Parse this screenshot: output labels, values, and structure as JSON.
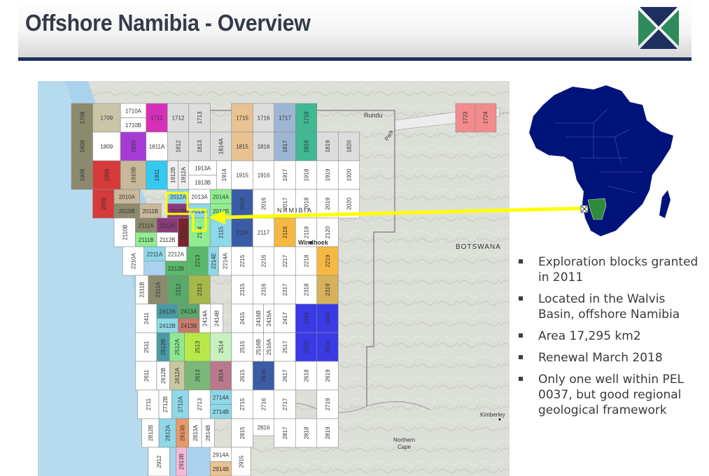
{
  "slide": {
    "title": "Offshore Namibia - Overview"
  },
  "map": {
    "places": {
      "rundu": "Rundu",
      "park": "Park",
      "namibia": "NAMIBIA",
      "windhoek": "Windhoek",
      "botswana": "BOTSWANA",
      "kimberley": "Kimberley",
      "northern": "Northern",
      "cape": "Cape"
    },
    "highlight_color": "#ffff00",
    "ocean_color": "#a9d3ec",
    "land_color": "#d9dcd6",
    "blocks": [
      {
        "id": "1708",
        "color": "#8c8a6c",
        "rot": true
      },
      {
        "id": "1709",
        "color": "#c9c6a8"
      },
      {
        "id": "1710A",
        "color": "#ffffff"
      },
      {
        "id": "1710B",
        "color": "#ffffff"
      },
      {
        "id": "1711",
        "color": "#d62fb8"
      },
      {
        "id": "1712",
        "color": "#dddddd"
      },
      {
        "id": "1713",
        "color": "#dddddd",
        "rot": true
      },
      {
        "id": "1808",
        "color": "#8c8a6c",
        "rot": true
      },
      {
        "id": "1809",
        "color": "#ffffff"
      },
      {
        "id": "1810",
        "color": "#a63bd6",
        "rot": true
      },
      {
        "id": "1811A",
        "color": "#ffffff"
      },
      {
        "id": "1812",
        "color": "#dddddd",
        "rot": true
      },
      {
        "id": "1813",
        "color": "#dddddd",
        "rot": true
      },
      {
        "id": "1814A",
        "color": "#dddddd",
        "rot": true
      },
      {
        "id": "1715",
        "color": "#e8c291"
      },
      {
        "id": "1716",
        "color": "#dddddd"
      },
      {
        "id": "1717",
        "color": "#9db6d4"
      },
      {
        "id": "1718",
        "color": "#3fb893",
        "rot": true
      },
      {
        "id": "1815",
        "color": "#e8c291"
      },
      {
        "id": "1816",
        "color": "#dddddd"
      },
      {
        "id": "1817",
        "color": "#9db6d4",
        "rot": true
      },
      {
        "id": "1818",
        "color": "#3fb893",
        "rot": true
      },
      {
        "id": "1819",
        "color": "#dddddd",
        "rot": true
      },
      {
        "id": "1820",
        "color": "#dddddd",
        "rot": true
      },
      {
        "id": "1723",
        "color": "#f28c8c",
        "rot": true
      },
      {
        "id": "1724",
        "color": "#f28c8c",
        "rot": true
      },
      {
        "id": "1908",
        "color": "#8c8a6c",
        "rot": true
      },
      {
        "id": "1909",
        "color": "#d63a3a",
        "rot": true
      },
      {
        "id": "1910B",
        "color": "#c8b89a",
        "rot": true
      },
      {
        "id": "1911",
        "color": "#35c8f0",
        "rot": true
      },
      {
        "id": "1912B",
        "color": "#eeeeee",
        "rot": true
      },
      {
        "id": "1912A",
        "color": "#eeeeee",
        "rot": true
      },
      {
        "id": "1913A",
        "color": "#ffffff"
      },
      {
        "id": "1913B",
        "color": "#ffffff"
      },
      {
        "id": "1914",
        "color": "#ffffff",
        "rot": true
      },
      {
        "id": "1915",
        "color": "#ffffff"
      },
      {
        "id": "1916",
        "color": "#ffffff"
      },
      {
        "id": "1917",
        "color": "#ffffff",
        "rot": true
      },
      {
        "id": "1918",
        "color": "#ffffff",
        "rot": true
      },
      {
        "id": "1919",
        "color": "#ffffff",
        "rot": true
      },
      {
        "id": "1920",
        "color": "#ffffff",
        "rot": true
      },
      {
        "id": "2009",
        "color": "#d63a3a",
        "rot": true
      },
      {
        "id": "2010A",
        "color": "#c8b89a"
      },
      {
        "id": "2010B",
        "color": "#8c8a6c"
      },
      {
        "id": "2011B",
        "color": "#c8b89a"
      },
      {
        "id": "2012A",
        "color": "#8fd8e8"
      },
      {
        "id": "2012B",
        "color": "#8a3a7a"
      },
      {
        "id": "2013A",
        "color": "#ffffff"
      },
      {
        "id": "2013B",
        "color": "#8fd8e8"
      },
      {
        "id": "2014A",
        "color": "#90ee90"
      },
      {
        "id": "2014B",
        "color": "#90ee90"
      },
      {
        "id": "2015",
        "color": "#3a5ca6",
        "rot": true
      },
      {
        "id": "2016",
        "color": "#ffffff",
        "rot": true
      },
      {
        "id": "2017",
        "color": "#ffffff",
        "rot": true
      },
      {
        "id": "2018",
        "color": "#ffffff",
        "rot": true
      },
      {
        "id": "2019",
        "color": "#ffffff",
        "rot": true
      },
      {
        "id": "2020",
        "color": "#ffffff",
        "rot": true
      },
      {
        "id": "2110B",
        "color": "#ffffff",
        "rot": true
      },
      {
        "id": "2111A",
        "color": "#8c8a6c"
      },
      {
        "id": "2111B",
        "color": "#90ee90"
      },
      {
        "id": "2112A",
        "color": "#8a3a7a"
      },
      {
        "id": "2112B",
        "color": "#ffffff"
      },
      {
        "id": "2113",
        "color": "#7a2230",
        "rot": true
      },
      {
        "id": "2114",
        "color": "#90ee90",
        "rot": true
      },
      {
        "id": "2115",
        "color": "#8fd8e8",
        "rot": true
      },
      {
        "id": "2116",
        "color": "#3a5ca6"
      },
      {
        "id": "2117",
        "color": "#ffffff"
      },
      {
        "id": "2118",
        "color": "#f5b942",
        "rot": true
      },
      {
        "id": "2119",
        "color": "#ffffff",
        "rot": true
      },
      {
        "id": "2120",
        "color": "#ffffff",
        "rot": true
      },
      {
        "id": "2210A",
        "color": "#ffffff",
        "rot": true
      },
      {
        "id": "2211A",
        "color": "#8fd8e8"
      },
      {
        "id": "2212A",
        "color": "#ffffff"
      },
      {
        "id": "2212B",
        "color": "#5ab86a"
      },
      {
        "id": "2213",
        "color": "#5ab86a",
        "rot": true
      },
      {
        "id": "2214E",
        "color": "#8fd8e8",
        "rot": true
      },
      {
        "id": "2214A",
        "color": "#ffffff",
        "rot": true
      },
      {
        "id": "2215",
        "color": "#ffffff",
        "rot": true
      },
      {
        "id": "2216",
        "color": "#ffffff",
        "rot": true
      },
      {
        "id": "2217",
        "color": "#ffffff",
        "rot": true
      },
      {
        "id": "2218",
        "color": "#ffffff",
        "rot": true
      },
      {
        "id": "2219",
        "color": "#f5b942",
        "rot": true
      },
      {
        "id": "2311B",
        "color": "#ffffff",
        "rot": true
      },
      {
        "id": "2311A",
        "color": "#8c8a6c",
        "rot": true
      },
      {
        "id": "2312",
        "color": "#5aa86a",
        "rot": true
      },
      {
        "id": "2313",
        "color": "#a6b84a",
        "rot": true
      },
      {
        "id": "2315",
        "color": "#ffffff",
        "rot": true
      },
      {
        "id": "2316",
        "color": "#ffffff",
        "rot": true
      },
      {
        "id": "2317",
        "color": "#ffffff",
        "rot": true
      },
      {
        "id": "2318",
        "color": "#ffffff",
        "rot": true
      },
      {
        "id": "2319",
        "color": "#d6b05a",
        "rot": true
      },
      {
        "id": "2411",
        "color": "#ffffff",
        "rot": true
      },
      {
        "id": "2412A",
        "color": "#4a9aa6"
      },
      {
        "id": "2412B",
        "color": "#8fd8e8"
      },
      {
        "id": "2413A",
        "color": "#5aa86a"
      },
      {
        "id": "2413B",
        "color": "#c97a6a"
      },
      {
        "id": "2414A",
        "color": "#ffffff",
        "rot": true
      },
      {
        "id": "2414B",
        "color": "#ffffff",
        "rot": true
      },
      {
        "id": "2415",
        "color": "#ffffff",
        "rot": true
      },
      {
        "id": "2416B",
        "color": "#ffffff",
        "rot": true
      },
      {
        "id": "2416A",
        "color": "#ffffff",
        "rot": true
      },
      {
        "id": "2417",
        "color": "#ffffff",
        "rot": true
      },
      {
        "id": "2418",
        "color": "#3a3ae6",
        "rot": true
      },
      {
        "id": "2419",
        "color": "#3a3ae6",
        "rot": true
      },
      {
        "id": "2511",
        "color": "#ffffff",
        "rot": true
      },
      {
        "id": "2512B",
        "color": "#4a9aa6",
        "rot": true
      },
      {
        "id": "2512A",
        "color": "#8fe88f",
        "rot": true
      },
      {
        "id": "2513",
        "color": "#b8e84a",
        "rot": true
      },
      {
        "id": "2514",
        "color": "#c8f0c0",
        "rot": true
      },
      {
        "id": "2515",
        "color": "#ffffff",
        "rot": true
      },
      {
        "id": "2516B",
        "color": "#ffffff",
        "rot": true
      },
      {
        "id": "2516A",
        "color": "#ffffff",
        "rot": true
      },
      {
        "id": "2517",
        "color": "#ffffff",
        "rot": true
      },
      {
        "id": "2518",
        "color": "#3a3ae6",
        "rot": true
      },
      {
        "id": "2519",
        "color": "#3a3ae6",
        "rot": true
      },
      {
        "id": "2611",
        "color": "#ffffff",
        "rot": true
      },
      {
        "id": "2612B",
        "color": "#ffffff",
        "rot": true
      },
      {
        "id": "2612A",
        "color": "#c8c8a0",
        "rot": true
      },
      {
        "id": "2613",
        "color": "#7ab87a",
        "rot": true
      },
      {
        "id": "2614",
        "color": "#b87a8a",
        "rot": true
      },
      {
        "id": "2615",
        "color": "#ffffff",
        "rot": true
      },
      {
        "id": "2616",
        "color": "#3a5ca6",
        "rot": true
      },
      {
        "id": "2617",
        "color": "#ffffff",
        "rot": true
      },
      {
        "id": "2618",
        "color": "#ffffff",
        "rot": true
      },
      {
        "id": "2619",
        "color": "#ffffff",
        "rot": true
      },
      {
        "id": "2711",
        "color": "#ffffff",
        "rot": true
      },
      {
        "id": "2712B",
        "color": "#ffffff",
        "rot": true
      },
      {
        "id": "2712A",
        "color": "#8fd8e8",
        "rot": true
      },
      {
        "id": "2713",
        "color": "#ffffff",
        "rot": true
      },
      {
        "id": "2714A",
        "color": "#8fd8e8"
      },
      {
        "id": "2714B",
        "color": "#8fd8e8"
      },
      {
        "id": "2715",
        "color": "#ffffff",
        "rot": true
      },
      {
        "id": "2716",
        "color": "#ffffff",
        "rot": true
      },
      {
        "id": "2717",
        "color": "#ffffff",
        "rot": true
      },
      {
        "id": "2719",
        "color": "#ffffff",
        "rot": true
      },
      {
        "id": "2812B",
        "color": "#ffffff",
        "rot": true
      },
      {
        "id": "2812A",
        "color": "#8fd8e8",
        "rot": true
      },
      {
        "id": "2813B",
        "color": "#e89a6a",
        "rot": true
      },
      {
        "id": "2813A",
        "color": "#ffffff",
        "rot": true
      },
      {
        "id": "2814B",
        "color": "#ffffff",
        "rot": true
      },
      {
        "id": "2815",
        "color": "#ffffff",
        "rot": true
      },
      {
        "id": "2816",
        "color": "#ffffff"
      },
      {
        "id": "2817",
        "color": "#ffffff",
        "rot": true
      },
      {
        "id": "2818",
        "color": "#ffffff",
        "rot": true
      },
      {
        "id": "2819",
        "color": "#ffffff",
        "rot": true
      },
      {
        "id": "2912",
        "color": "#ffffff",
        "rot": true
      },
      {
        "id": "2913B",
        "color": "#f5b8d6",
        "rot": true
      },
      {
        "id": "2914A",
        "color": "#ffffff"
      },
      {
        "id": "2914B",
        "color": "#e8c291"
      },
      {
        "id": "2915",
        "color": "#ffffff",
        "rot": true
      }
    ]
  },
  "africa": {
    "continent_color": "#00137a",
    "namibia_color": "#2e8b3a"
  },
  "bullets": [
    "Exploration blocks granted in 2011",
    "Located in the Walvis Basin, offshore Namibia",
    "Area 17,295 km2",
    "Renewal March 2018",
    "Only one well within PEL 0037, but good regional geological framework"
  ]
}
